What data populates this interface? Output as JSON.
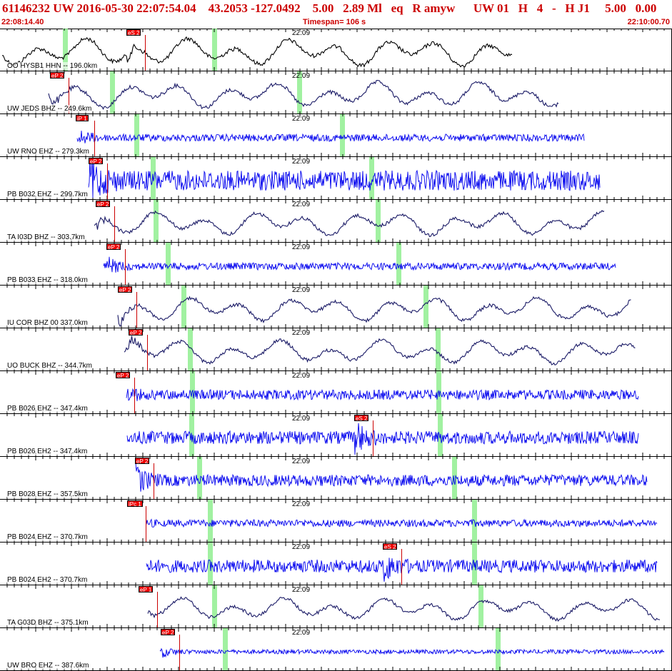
{
  "header": {
    "event_info": "61146232 UW 2016-05-30 22:07:54.04    43.2053 -127.0492    5.00   2.89 Ml   eq   R amyw      UW 01   H   4   -   H J1     5.00   0.00",
    "start_time": "22:08:14.40",
    "timespan": "Timespan= 106 s",
    "end_time": "22:10:00.70"
  },
  "colors": {
    "header_text": "#cc0000",
    "trace_blue": "#0000ee",
    "trace_navy": "#1a1a66",
    "trace_black": "#000000",
    "pick": "#ee0000",
    "green_marker": "#90ee90"
  },
  "minute_label": "22:09",
  "traces": [
    {
      "label": "OO HYSB1 HHN -- 196.0km",
      "color": "#000000",
      "noise": "long",
      "start": 3,
      "end": 718,
      "amp": 16,
      "picks": [
        {
          "label": "eS 2",
          "x": 177
        }
      ],
      "green": [
        88,
        297
      ]
    },
    {
      "label": "UW JEDS BHZ -- 249.6km",
      "color": "#1a1a66",
      "noise": "long",
      "start": 68,
      "end": 783,
      "amp": 15,
      "picks": [
        {
          "label": "eP 2",
          "x": 70
        }
      ],
      "green": [
        154,
        416
      ]
    },
    {
      "label": "UW RNO EHZ -- 279.3km",
      "color": "#0000ee",
      "noise": "short",
      "start": 108,
      "end": 818,
      "amp": 5,
      "picks": [
        {
          "label": "iP 1",
          "x": 106
        }
      ],
      "green": [
        188,
        476
      ]
    },
    {
      "label": "PB B032 EHZ -- 299.7km",
      "color": "#0000ee",
      "noise": "short",
      "start": 124,
      "end": 840,
      "amp": 14,
      "picks": [
        {
          "label": "eP 2",
          "x": 124
        }
      ],
      "green": [
        211,
        517
      ]
    },
    {
      "label": "TA I03D BHZ -- 303.7km",
      "color": "#1a1a66",
      "noise": "long",
      "start": 132,
      "end": 846,
      "amp": 14,
      "picks": [
        {
          "label": "eP 2",
          "x": 134
        }
      ],
      "green": [
        215,
        526
      ]
    },
    {
      "label": "PB B033 EHZ -- 318.0km",
      "color": "#0000ee",
      "noise": "short",
      "start": 145,
      "end": 862,
      "amp": 5,
      "picks": [
        {
          "label": "eP 2",
          "x": 149
        }
      ],
      "green": [
        232,
        555
      ]
    },
    {
      "label": "IU COR BHZ 00 337.0km",
      "color": "#1a1a66",
      "noise": "long",
      "start": 165,
      "end": 884,
      "amp": 14,
      "picks": [
        {
          "label": "eP 2",
          "x": 165
        }
      ],
      "green": [
        254,
        593
      ]
    },
    {
      "label": "UO BUCK BHZ -- 344.7km",
      "color": "#1a1a66",
      "noise": "long",
      "start": 174,
      "end": 890,
      "amp": 14,
      "picks": [
        {
          "label": "eP 2",
          "x": 180
        }
      ],
      "green": [
        263,
        610
      ]
    },
    {
      "label": "PB B026 EHZ -- 347.4km",
      "color": "#0000ee",
      "noise": "short",
      "start": 177,
      "end": 894,
      "amp": 7,
      "picks": [
        {
          "label": "eP 2",
          "x": 162
        }
      ],
      "green": [
        266,
        611
      ]
    },
    {
      "label": "PB B026 EH2 -- 347.4km",
      "color": "#0000ee",
      "noise": "short",
      "start": 178,
      "end": 894,
      "amp": 9,
      "picks": [
        {
          "label": "eS 2",
          "x": 496
        }
      ],
      "green": [
        265,
        613
      ]
    },
    {
      "label": "PB B028 EHZ -- 357.5km",
      "color": "#0000ee",
      "noise": "short",
      "start": 190,
      "end": 906,
      "amp": 8,
      "picks": [
        {
          "label": "eP 2",
          "x": 189
        }
      ],
      "green": [
        276,
        633
      ]
    },
    {
      "label": "PB B024 EHZ -- 370.7km",
      "color": "#0000ee",
      "noise": "short",
      "start": 205,
      "end": 920,
      "amp": 5,
      "picks": [
        {
          "label": "iPc 1",
          "x": 178
        }
      ],
      "green": [
        291,
        661
      ]
    },
    {
      "label": "PB B024 EH2 -- 370.7km",
      "color": "#0000ee",
      "noise": "short",
      "start": 205,
      "end": 920,
      "amp": 9,
      "picks": [
        {
          "label": "eS 2",
          "x": 536
        }
      ],
      "green": [
        291,
        661
      ]
    },
    {
      "label": "TA G03D BHZ -- 375.1km",
      "color": "#1a1a66",
      "noise": "long",
      "start": 207,
      "end": 925,
      "amp": 13,
      "picks": [
        {
          "label": "eP 1",
          "x": 194
        }
      ],
      "green": [
        297,
        670
      ]
    },
    {
      "label": "UW BRO EHZ -- 387.6km",
      "color": "#0000ee",
      "noise": "short",
      "start": 224,
      "end": 930,
      "amp": 3,
      "picks": [
        {
          "label": "eP 2",
          "x": 225
        }
      ],
      "green": [
        312,
        694
      ]
    }
  ]
}
